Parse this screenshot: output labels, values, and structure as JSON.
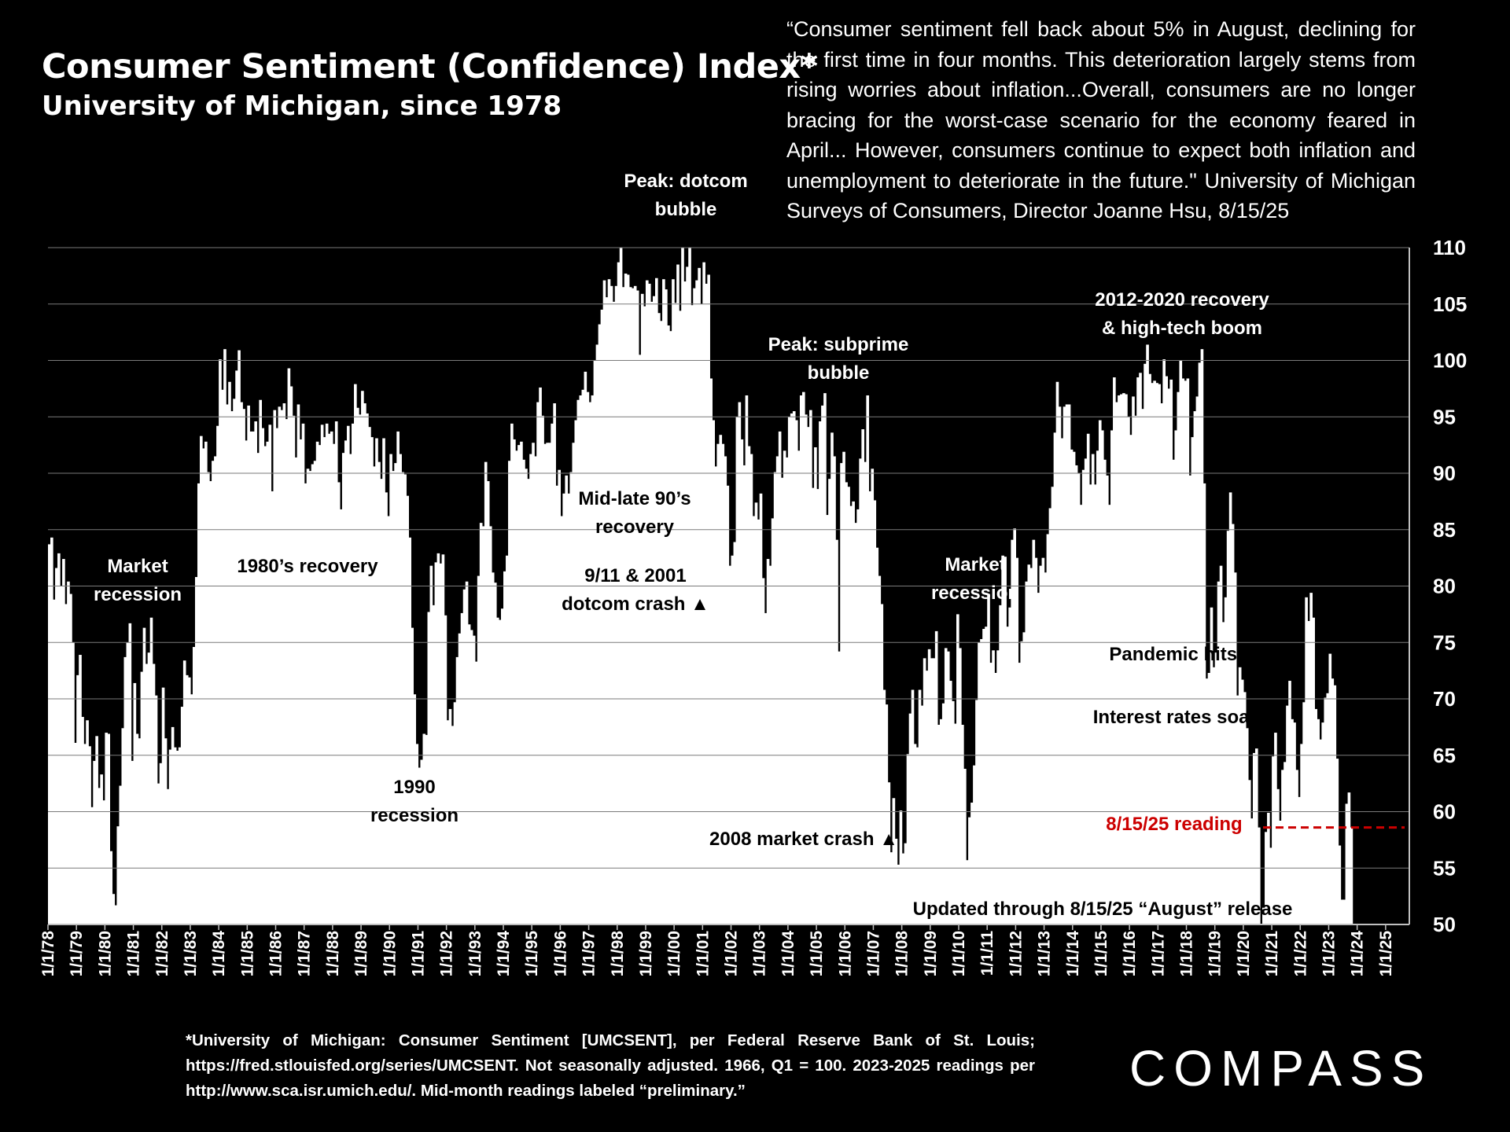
{
  "chart_data": {
    "type": "bar",
    "title": "Consumer Sentiment (Confidence) Index*",
    "subtitle": "University of Michigan, since 1978",
    "ylim": [
      50,
      110
    ],
    "yticks": [
      50,
      55,
      60,
      65,
      70,
      75,
      80,
      85,
      90,
      95,
      100,
      105,
      110
    ],
    "y_axis_position": "right",
    "grid": true,
    "xlabel": "",
    "ylabel": "",
    "x_tick_labels": [
      "1/1/78",
      "1/1/79",
      "1/1/80",
      "1/1/81",
      "1/1/82",
      "1/1/83",
      "1/1/84",
      "1/1/85",
      "1/1/86",
      "1/1/87",
      "1/1/88",
      "1/1/89",
      "1/1/90",
      "1/1/91",
      "1/1/92",
      "1/1/93",
      "1/1/94",
      "1/1/95",
      "1/1/96",
      "1/1/97",
      "1/1/98",
      "1/1/99",
      "1/1/00",
      "1/1/01",
      "1/1/02",
      "1/1/03",
      "1/1/04",
      "1/1/05",
      "1/1/06",
      "1/1/07",
      "1/1/08",
      "1/1/09",
      "1/1/10",
      "1/1/11",
      "1/1/12",
      "1/1/13",
      "1/1/14",
      "1/1/15",
      "1/1/16",
      "1/1/17",
      "1/1/18",
      "1/1/19",
      "1/1/20",
      "1/1/21",
      "1/1/22",
      "1/1/23",
      "1/1/24",
      "1/1/25"
    ],
    "series": [
      {
        "start": "1978-01",
        "frequency": "monthly",
        "values": [
          83.7,
          84.3,
          78.8,
          81.6,
          82.9,
          80.0,
          82.4,
          78.4,
          80.4,
          79.3,
          75.0,
          66.1,
          72.1,
          73.9,
          68.4,
          66.0,
          68.1,
          65.8,
          60.4,
          64.5,
          66.7,
          62.1,
          63.3,
          61.0,
          67.0,
          66.9,
          56.5,
          52.7,
          51.7,
          58.7,
          62.3,
          67.4,
          73.7,
          75.0,
          76.7,
          64.5,
          71.4,
          66.9,
          66.5,
          72.4,
          76.3,
          73.1,
          74.1,
          77.2,
          73.1,
          70.3,
          62.5,
          64.3,
          71.0,
          66.5,
          62.0,
          65.5,
          67.5,
          65.7,
          65.4,
          65.7,
          69.3,
          73.4,
          72.1,
          71.9,
          70.4,
          74.6,
          80.8,
          89.1,
          93.3,
          92.2,
          92.8,
          90.1,
          89.3,
          91.1,
          91.5,
          94.2,
          100.1,
          97.4,
          101.0,
          96.1,
          98.1,
          95.5,
          96.6,
          99.1,
          100.9,
          96.3,
          95.7,
          92.9,
          96.0,
          93.7,
          93.7,
          94.6,
          91.8,
          96.5,
          94.0,
          92.4,
          92.8,
          94.3,
          88.4,
          95.6,
          94.0,
          95.9,
          95.6,
          96.2,
          94.8,
          99.3,
          97.7,
          95.1,
          91.4,
          96.1,
          93.0,
          94.4,
          89.1,
          90.4,
          90.2,
          90.8,
          91.1,
          92.8,
          92.5,
          94.3,
          93.2,
          94.4,
          93.5,
          93.7,
          92.6,
          94.6,
          89.2,
          86.8,
          91.8,
          92.9,
          94.2,
          91.7,
          94.4,
          97.9,
          95.8,
          95.2,
          97.3,
          96.2,
          95.3,
          94.1,
          93.2,
          90.6,
          93.1,
          91.0,
          89.5,
          93.1,
          88.3,
          86.2,
          91.7,
          90.2,
          90.9,
          93.7,
          91.7,
          90.1,
          89.9,
          88.0,
          84.3,
          76.3,
          70.4,
          66.0,
          63.9,
          64.6,
          66.9,
          66.8,
          77.7,
          81.8,
          78.3,
          82.1,
          82.9,
          82.0,
          82.8,
          77.4,
          68.1,
          69.1,
          67.6,
          69.7,
          73.7,
          75.8,
          77.6,
          79.7,
          80.4,
          76.6,
          76.1,
          75.6,
          73.3,
          80.9,
          85.6,
          85.3,
          91.0,
          89.3,
          85.3,
          81.2,
          80.3,
          77.2,
          77.0,
          78.0,
          81.3,
          82.7,
          91.1,
          94.4,
          93.0,
          92.0,
          92.5,
          92.8,
          91.2,
          90.4,
          89.5,
          91.7,
          92.7,
          91.5,
          96.3,
          97.6,
          95.1,
          92.6,
          92.7,
          92.7,
          94.4,
          96.2,
          88.9,
          90.3,
          86.2,
          88.2,
          89.8,
          88.2,
          90.1,
          92.7,
          94.7,
          96.5,
          96.9,
          97.4,
          99.0,
          97.2,
          96.3,
          96.9,
          100.0,
          101.4,
          103.2,
          104.5,
          107.1,
          105.6,
          107.2,
          106.6,
          105.2,
          106.6,
          108.7,
          110.4,
          106.5,
          107.7,
          107.6,
          106.5,
          106.4,
          106.6,
          106.2,
          100.5,
          105.9,
          104.8,
          107.1,
          106.8,
          105.2,
          105.7,
          107.3,
          104.2,
          103.5,
          107.2,
          106.3,
          103.1,
          102.6,
          107.2,
          105.1,
          108.5,
          104.4,
          112.0,
          107.0,
          108.3,
          110.6,
          104.9,
          106.4,
          107.1,
          108.2,
          105.0,
          108.7,
          106.8,
          107.6,
          98.4,
          94.7,
          90.6,
          92.6,
          93.4,
          92.6,
          91.5,
          88.9,
          81.8,
          82.7,
          83.9,
          95.0,
          96.3,
          93.0,
          90.7,
          96.9,
          92.4,
          91.7,
          86.2,
          87.4,
          85.9,
          88.2,
          80.7,
          77.6,
          82.4,
          81.8,
          86.0,
          90.1,
          91.5,
          93.7,
          89.6,
          92.0,
          91.4,
          95.0,
          95.3,
          95.5,
          94.7,
          92.0,
          96.9,
          97.2,
          95.2,
          94.1,
          95.6,
          88.7,
          92.3,
          88.6,
          94.6,
          96.0,
          97.1,
          86.3,
          89.5,
          93.6,
          91.5,
          84.1,
          74.2,
          90.9,
          91.9,
          89.2,
          88.8,
          87.1,
          87.5,
          85.6,
          86.8,
          91.3,
          93.9,
          91.0,
          96.9,
          88.4,
          90.4,
          87.6,
          83.4,
          80.9,
          78.4,
          70.8,
          69.5,
          62.6,
          56.4,
          61.2,
          57.6,
          55.3,
          60.1,
          56.3,
          57.2,
          65.1,
          68.7,
          70.8,
          66.0,
          65.7,
          70.8,
          69.4,
          73.6,
          72.5,
          74.4,
          73.6,
          73.6,
          76.0,
          67.7,
          68.2,
          69.6,
          74.5,
          74.2,
          71.6,
          69.8,
          67.8,
          77.5,
          74.5,
          67.7,
          63.8,
          55.7,
          59.5,
          60.8,
          64.1,
          69.9,
          75.0,
          75.3,
          76.2,
          76.4,
          79.3,
          73.2,
          74.3,
          72.3,
          74.3,
          78.3,
          82.7,
          82.6,
          76.4,
          78.1,
          84.1,
          85.1,
          82.5,
          73.2,
          75.1,
          75.9,
          80.4,
          81.9,
          81.6,
          84.1,
          82.5,
          79.4,
          81.8,
          82.5,
          81.2,
          84.6,
          86.9,
          88.8,
          93.6,
          98.1,
          95.9,
          93.1,
          95.9,
          96.1,
          96.1,
          92.1,
          91.9,
          90.7,
          90.0,
          87.2,
          90.3,
          91.3,
          93.5,
          89.0,
          91.7,
          89.0,
          92.0,
          94.7,
          93.8,
          91.2,
          89.8,
          87.2,
          93.8,
          98.5,
          96.3,
          96.9,
          97.0,
          97.1,
          97.0,
          95.0,
          93.4,
          96.8,
          95.1,
          98.5,
          98.9,
          95.7,
          99.7,
          101.4,
          98.8,
          98.0,
          98.2,
          98.0,
          97.9,
          96.2,
          100.1,
          98.6,
          97.5,
          98.3,
          91.2,
          93.8,
          97.2,
          100.0,
          98.4,
          98.2,
          98.4,
          89.8,
          93.2,
          95.5,
          96.8,
          99.8,
          101.0,
          89.1,
          71.8,
          72.3,
          78.1,
          72.8,
          74.1,
          80.4,
          81.8,
          76.8,
          79.0,
          84.9,
          88.3,
          85.5,
          81.2,
          70.3,
          72.8,
          71.7,
          70.6,
          67.4,
          62.8,
          59.4,
          65.2,
          65.6,
          58.6,
          50.0,
          51.5,
          58.2,
          59.9,
          56.8,
          64.9,
          67.0,
          62.0,
          59.2,
          63.7,
          64.4,
          69.4,
          71.6,
          68.2,
          67.9,
          63.7,
          61.3,
          66.0,
          69.7,
          79.0,
          76.9,
          79.4,
          77.2,
          69.1,
          68.2,
          66.4,
          67.9,
          70.1,
          70.5,
          74.0,
          71.8,
          71.2,
          64.7,
          57.0,
          52.2,
          52.2,
          60.7,
          61.7,
          58.6
        ]
      }
    ],
    "annotations": [
      {
        "text": "Market recession",
        "color": "#ffffff",
        "on": "dark"
      },
      {
        "text": "1980’s recovery",
        "color": "#000000",
        "on": "light"
      },
      {
        "text": "1990 recession",
        "color": "#000000",
        "on": "light"
      },
      {
        "text": "Peak: dotcom bubble",
        "color": "#ffffff",
        "on": "dark"
      },
      {
        "text": "Mid-late 90’s recovery",
        "color": "#000000",
        "on": "light"
      },
      {
        "text": "9/11 & 2001 dotcom crash ▲",
        "color": "#000000",
        "on": "light"
      },
      {
        "text": "Peak: subprime bubble",
        "color": "#ffffff",
        "on": "dark"
      },
      {
        "text": "Market recession",
        "color": "#ffffff",
        "on": "dark"
      },
      {
        "text": "2008 market crash ▲",
        "color": "#000000",
        "on": "light"
      },
      {
        "text": "2012-2020 recovery & high-tech boom",
        "color": "#ffffff",
        "on": "dark"
      },
      {
        "text": "Pandemic hits ▲",
        "color": "#000000",
        "on": "light"
      },
      {
        "text": "Interest rates soar ▲",
        "color": "#000000",
        "on": "light"
      },
      {
        "text": "8/15/25 reading",
        "color": "#cc0000",
        "on": "light"
      },
      {
        "text": "Updated through 8/15/25 “August” release",
        "color": "#000000",
        "on": "light"
      }
    ],
    "reference_line": {
      "value": 58.6,
      "style": "dashed",
      "color": "#cc0000"
    }
  },
  "quote": "“Consumer sentiment fell back about 5% in August, declining for the first time in four months. This deterioration largely stems from rising worries about inflation...Overall, consumers are no longer bracing for the worst-case scenario for the economy feared in April... However, consumers continue to expect both inflation and unemployment to deteriorate in the future.\" University of Michigan Surveys of Consumers, Director Joanne Hsu, 8/15/25",
  "footnote": "*University of Michigan: Consumer Sentiment [UMCSENT], per Federal Reserve Bank of St. Louis; https://fred.stlouisfed.org/series/UMCSENT. Not seasonally adjusted. 1966, Q1 = 100. 2023-2025 readings per http://www.sca.isr.umich.edu/. Mid-month readings labeled “preliminary.”",
  "logo": "COMPASS"
}
